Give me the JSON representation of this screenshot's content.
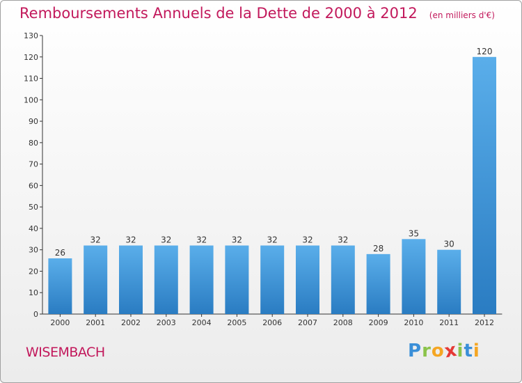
{
  "header": {
    "title": "Remboursements Annuels de la Dette de 2000 à 2012",
    "unit": "(en milliers d'€)"
  },
  "footer": {
    "city": "WISEMBACH",
    "logo_letters": [
      "P",
      "r",
      "o",
      "x",
      "i",
      "t",
      "i"
    ],
    "logo_colors": [
      "#3a8fd8",
      "#8bc34a",
      "#f5a623",
      "#e53935",
      "#8bc34a",
      "#3a8fd8",
      "#f5a623"
    ]
  },
  "colors": {
    "bar_top": "#5aaeea",
    "bar_bottom": "#2a7cc2",
    "title": "#c2185b"
  },
  "chart_data": {
    "type": "bar",
    "categories": [
      "2000",
      "2001",
      "2002",
      "2003",
      "2004",
      "2005",
      "2006",
      "2007",
      "2008",
      "2009",
      "2010",
      "2011",
      "2012"
    ],
    "values": [
      26,
      32,
      32,
      32,
      32,
      32,
      32,
      32,
      32,
      28,
      35,
      30,
      120
    ],
    "title": "Remboursements Annuels de la Dette de 2000 à 2012",
    "ylim": [
      0,
      130
    ],
    "yticks": [
      0,
      10,
      20,
      30,
      40,
      50,
      60,
      70,
      80,
      90,
      100,
      110,
      120,
      130
    ],
    "grid": false,
    "legend": "none"
  }
}
